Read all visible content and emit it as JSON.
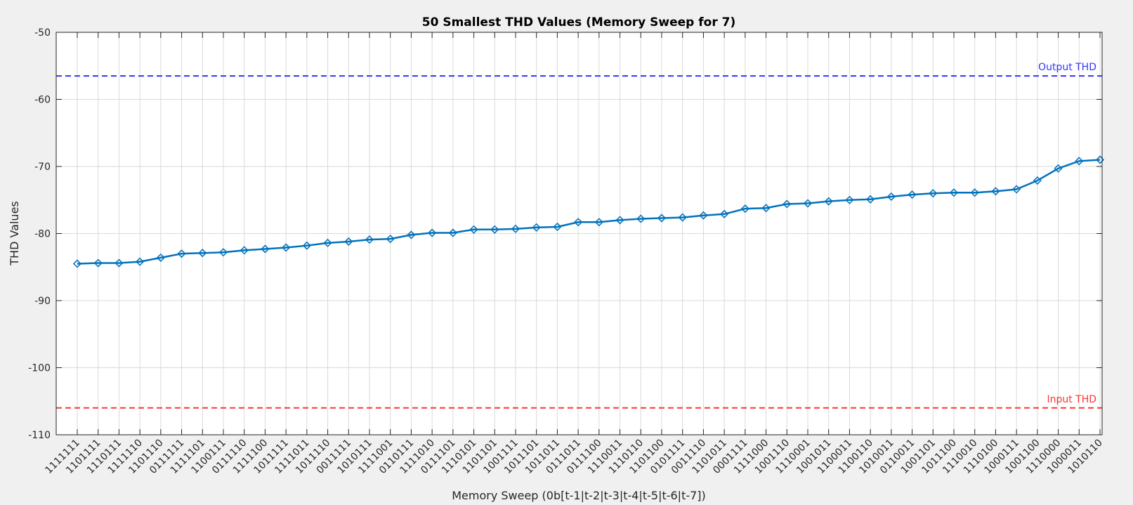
{
  "chart_data": {
    "type": "line",
    "title": "50 Smallest THD Values (Memory Sweep for 7)",
    "xlabel": "Memory Sweep (0b[t-1|t-2|t-3|t-4|t-5|t-6|t-7])",
    "ylabel": "THD Values",
    "ylim": [
      -110,
      -50
    ],
    "yticks": [
      -110,
      -100,
      -90,
      -80,
      -70,
      -60,
      -50
    ],
    "grid": true,
    "categories": [
      "1111111",
      "1101111",
      "1110111",
      "1111110",
      "1101110",
      "0111111",
      "1111101",
      "1100111",
      "0111110",
      "1111100",
      "1011111",
      "1111011",
      "1011110",
      "0011111",
      "1010111",
      "1111001",
      "0110111",
      "1111010",
      "0111101",
      "1110101",
      "1101101",
      "1001111",
      "1011101",
      "1011011",
      "0111011",
      "0111100",
      "1110011",
      "1110110",
      "1101100",
      "0101111",
      "0011110",
      "1101011",
      "0001111",
      "1111000",
      "1001110",
      "1110001",
      "1001011",
      "1100011",
      "1100110",
      "1010011",
      "0110011",
      "1001101",
      "1011100",
      "1110010",
      "1110100",
      "1000111",
      "1001100",
      "1110000",
      "1000011",
      "1010110"
    ],
    "series": [
      {
        "color": "#0072BD",
        "marker": "diamond",
        "values": [
          -84.5,
          -84.4,
          -84.4,
          -84.2,
          -83.6,
          -83.0,
          -82.9,
          -82.8,
          -82.5,
          -82.3,
          -82.1,
          -81.8,
          -81.4,
          -81.2,
          -80.9,
          -80.8,
          -80.2,
          -79.9,
          -79.9,
          -79.4,
          -79.4,
          -79.3,
          -79.1,
          -79.0,
          -78.3,
          -78.3,
          -78.0,
          -77.8,
          -77.7,
          -77.6,
          -77.3,
          -77.1,
          -76.3,
          -76.2,
          -75.6,
          -75.5,
          -75.2,
          -75.0,
          -74.9,
          -74.5,
          -74.2,
          -74.0,
          -73.9,
          -73.9,
          -73.7,
          -73.4,
          -72.1,
          -70.3,
          -69.2,
          -69.0
        ]
      }
    ],
    "reference_lines": [
      {
        "label": "Output THD",
        "value": -56.5,
        "color": "#3333ff",
        "style": "dashed"
      },
      {
        "label": "Input THD",
        "value": -106.0,
        "color": "#ff3333",
        "style": "dashed"
      }
    ]
  }
}
